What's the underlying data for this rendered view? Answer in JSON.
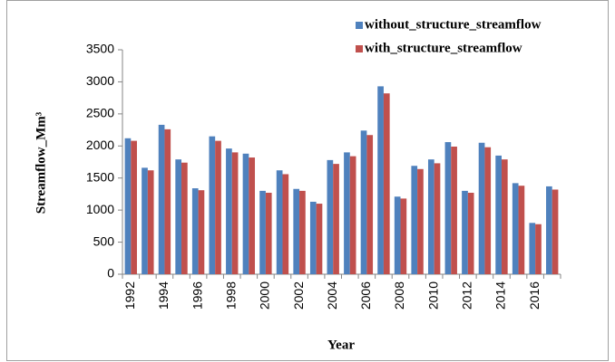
{
  "chart_data": {
    "type": "bar",
    "x_label": "Year",
    "y_label": "Streamflow_Mm³",
    "categories": [
      "1992",
      null,
      "1994",
      null,
      "1996",
      null,
      "1998",
      null,
      "2000",
      null,
      "2002",
      null,
      "2004",
      null,
      "2006",
      null,
      "2008",
      null,
      "2010",
      null,
      "2012",
      null,
      "2014",
      null,
      "2016",
      null
    ],
    "series": [
      {
        "name": "without_structure_streamflow",
        "color": "#4f81bd",
        "values": [
          2120,
          1660,
          2330,
          1790,
          1340,
          2150,
          1960,
          1880,
          1300,
          1620,
          1330,
          1130,
          1780,
          1900,
          2240,
          2930,
          1210,
          1690,
          1790,
          2060,
          1300,
          2050,
          1850,
          1420,
          800,
          1370
        ]
      },
      {
        "name": "with_structure_streamflow",
        "color": "#c0504d",
        "values": [
          2080,
          1620,
          2260,
          1740,
          1310,
          2080,
          1900,
          1820,
          1270,
          1560,
          1300,
          1100,
          1720,
          1840,
          2170,
          2820,
          1180,
          1640,
          1730,
          1990,
          1270,
          1980,
          1790,
          1380,
          780,
          1320
        ]
      }
    ],
    "ylim": [
      0,
      3500
    ],
    "yticks": [
      0,
      500,
      1000,
      1500,
      2000,
      2500,
      3000,
      3500
    ],
    "grid": false,
    "legend": "top-right"
  }
}
